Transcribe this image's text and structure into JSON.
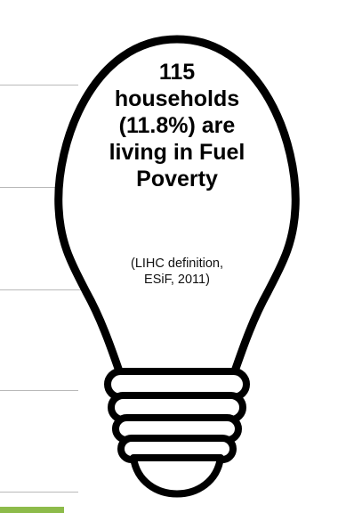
{
  "headline": {
    "lines": [
      "115",
      "households",
      "(11.8%) are",
      "living in Fuel",
      "Poverty"
    ]
  },
  "source_note": {
    "lines": [
      "(LIHC definition,",
      "ESiF, 2011)"
    ]
  },
  "icons": {
    "bulb": "lightbulb-icon"
  },
  "colors": {
    "accent": "#8dbb4a",
    "guide_lines": "#b9b9b9",
    "bulb_outline": "#000000"
  }
}
